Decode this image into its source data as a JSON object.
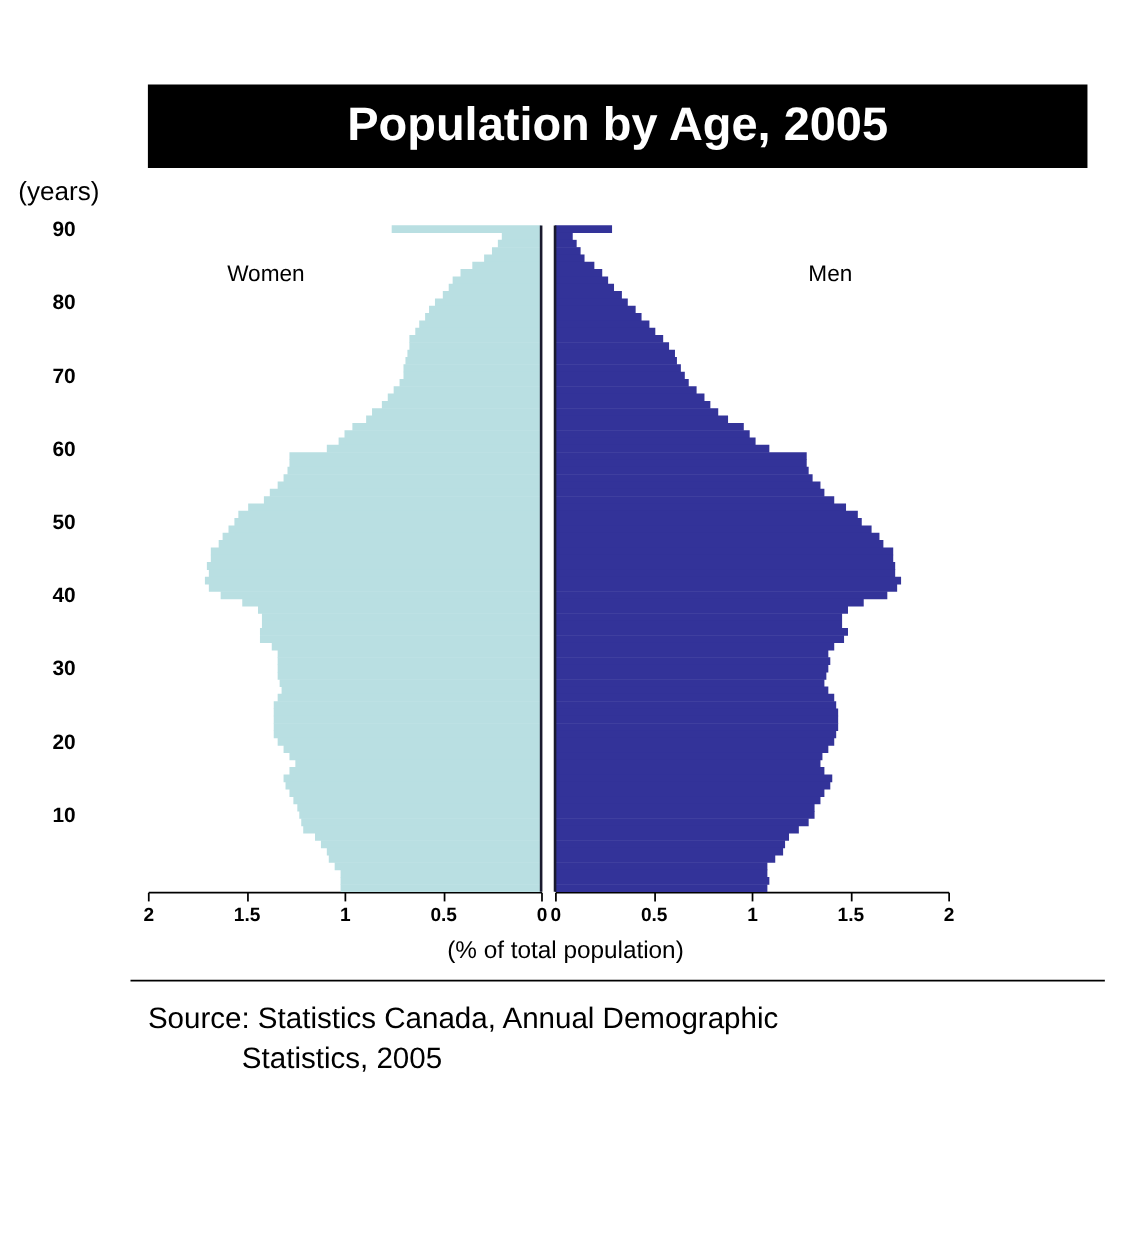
{
  "chart_data": [
    {
      "type": "bar",
      "orientation": "horizontal",
      "title": "Population by Age, 2005",
      "ylabel": "(years)",
      "xlabel": "(% of total population)",
      "annotations": [
        "Source:  Statistics Canada, Annual Demographic Statistics, 2005"
      ],
      "categories": [
        "90",
        null,
        null,
        null,
        null,
        null,
        null,
        null,
        null,
        null,
        "80",
        null,
        null,
        null,
        null,
        null,
        null,
        null,
        null,
        null,
        "70",
        null,
        null,
        null,
        null,
        null,
        null,
        null,
        null,
        null,
        "60",
        null,
        null,
        null,
        null,
        null,
        null,
        null,
        null,
        null,
        "50",
        null,
        null,
        null,
        null,
        null,
        null,
        null,
        null,
        null,
        "40",
        null,
        null,
        null,
        null,
        null,
        null,
        null,
        null,
        null,
        "30",
        null,
        null,
        null,
        null,
        null,
        null,
        null,
        null,
        null,
        "20",
        null,
        null,
        null,
        null,
        null,
        null,
        null,
        null,
        null,
        "10",
        null,
        null,
        null,
        null,
        null,
        null,
        null,
        null,
        null,
        null
      ],
      "series": [
        {
          "name": "Women",
          "color": "#b9dfe2",
          "values": [
            0.76,
            0.2,
            0.22,
            0.25,
            0.29,
            0.35,
            0.41,
            0.45,
            0.47,
            0.5,
            0.54,
            0.57,
            0.59,
            0.62,
            0.64,
            0.67,
            0.67,
            0.68,
            0.69,
            0.7,
            0.7,
            0.72,
            0.75,
            0.78,
            0.81,
            0.86,
            0.89,
            0.96,
            1.0,
            1.03,
            1.09,
            1.28,
            1.28,
            1.29,
            1.31,
            1.34,
            1.38,
            1.41,
            1.49,
            1.54,
            1.56,
            1.59,
            1.62,
            1.64,
            1.68,
            1.68,
            1.7,
            1.69,
            1.71,
            1.69,
            1.63,
            1.52,
            1.44,
            1.42,
            1.42,
            1.43,
            1.43,
            1.37,
            1.34,
            1.34,
            1.34,
            1.34,
            1.33,
            1.32,
            1.34,
            1.36,
            1.36,
            1.36,
            1.36,
            1.36,
            1.34,
            1.31,
            1.28,
            1.25,
            1.28,
            1.31,
            1.3,
            1.28,
            1.26,
            1.24,
            1.23,
            1.22,
            1.21,
            1.15,
            1.12,
            1.09,
            1.08,
            1.05,
            1.02,
            1.02,
            1.02
          ]
        }
      ],
      "xlim": [
        2,
        0
      ],
      "xticks": [
        2,
        1.5,
        1,
        0.5,
        0
      ],
      "grid": false,
      "legend": false
    },
    {
      "type": "bar",
      "orientation": "horizontal",
      "tick_labels": "x",
      "categories": [
        "90",
        null,
        null,
        null,
        null,
        null,
        null,
        null,
        null,
        null,
        "80",
        null,
        null,
        null,
        null,
        null,
        null,
        null,
        null,
        null,
        "70",
        null,
        null,
        null,
        null,
        null,
        null,
        null,
        null,
        null,
        "60",
        null,
        null,
        null,
        null,
        null,
        null,
        null,
        null,
        null,
        "50",
        null,
        null,
        null,
        null,
        null,
        null,
        null,
        null,
        null,
        "40",
        null,
        null,
        null,
        null,
        null,
        null,
        null,
        null,
        null,
        "30",
        null,
        null,
        null,
        null,
        null,
        null,
        null,
        null,
        null,
        "20",
        null,
        null,
        null,
        null,
        null,
        null,
        null,
        null,
        null,
        "10",
        null,
        null,
        null,
        null,
        null,
        null,
        null,
        null,
        null,
        null
      ],
      "series": [
        {
          "name": "Men",
          "color": "#333399",
          "values": [
            0.29,
            0.09,
            0.11,
            0.13,
            0.15,
            0.2,
            0.24,
            0.27,
            0.3,
            0.34,
            0.37,
            0.41,
            0.44,
            0.48,
            0.51,
            0.55,
            0.58,
            0.61,
            0.62,
            0.64,
            0.66,
            0.68,
            0.72,
            0.76,
            0.79,
            0.83,
            0.88,
            0.96,
            0.99,
            1.02,
            1.09,
            1.28,
            1.28,
            1.29,
            1.31,
            1.35,
            1.37,
            1.42,
            1.48,
            1.54,
            1.56,
            1.61,
            1.65,
            1.67,
            1.72,
            1.72,
            1.73,
            1.73,
            1.76,
            1.74,
            1.69,
            1.57,
            1.49,
            1.46,
            1.46,
            1.49,
            1.47,
            1.42,
            1.39,
            1.4,
            1.39,
            1.38,
            1.37,
            1.39,
            1.42,
            1.43,
            1.44,
            1.44,
            1.44,
            1.43,
            1.42,
            1.39,
            1.36,
            1.35,
            1.37,
            1.41,
            1.4,
            1.37,
            1.35,
            1.32,
            1.32,
            1.29,
            1.24,
            1.19,
            1.17,
            1.16,
            1.12,
            1.08,
            1.08,
            1.09,
            1.08
          ]
        }
      ],
      "xlim": [
        0,
        2
      ],
      "xticks": [
        0,
        0.5,
        1,
        1.5,
        2
      ],
      "grid": false,
      "legend": false
    }
  ]
}
